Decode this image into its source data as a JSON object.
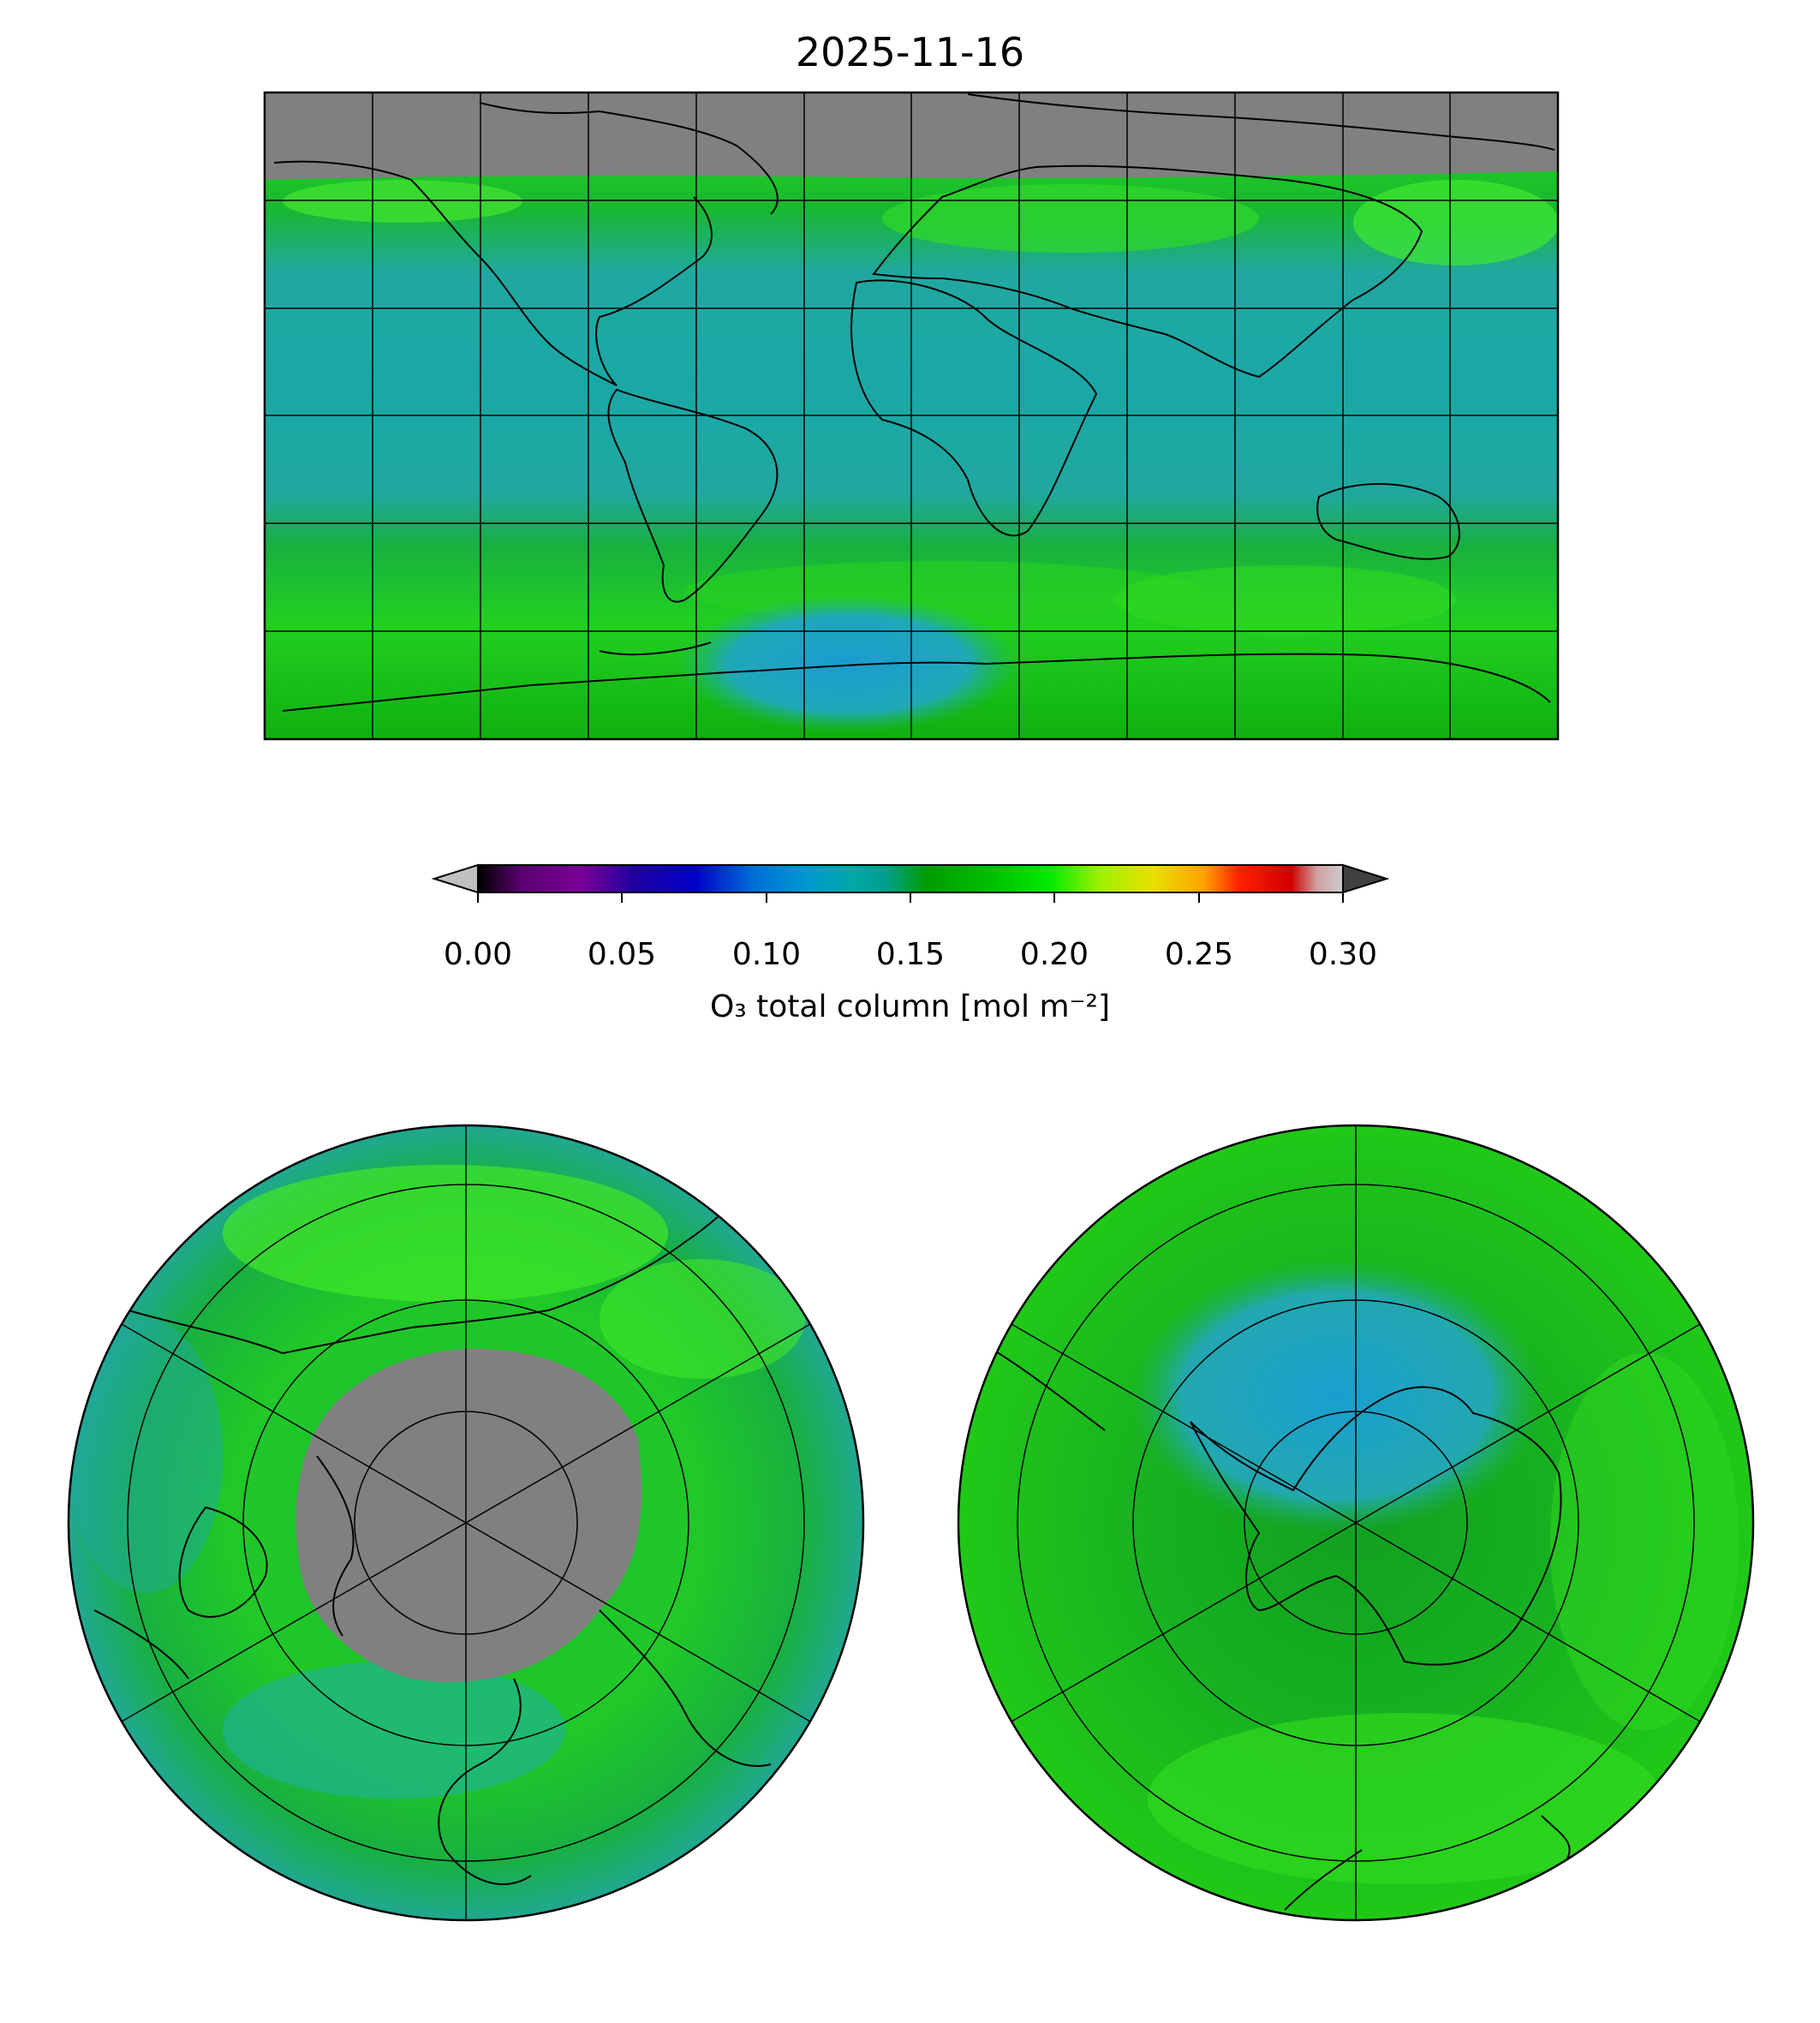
{
  "title": "2025-11-16",
  "colorbar": {
    "label": "O₃ total column [mol m⁻²]",
    "ticks": [
      "0.00",
      "0.05",
      "0.10",
      "0.15",
      "0.20",
      "0.25",
      "0.30"
    ],
    "range": [
      0.0,
      0.3
    ],
    "extend": "both",
    "under_color": "#c0c0c0",
    "over_color": "#404040",
    "colormap": "nipy_spectral"
  },
  "panels": [
    {
      "name": "global-map",
      "projection": "plate-carree",
      "no_data_color": "#808080"
    },
    {
      "name": "north-polar-map",
      "projection": "north-polar-stereographic",
      "no_data_color": "#808080"
    },
    {
      "name": "south-polar-map",
      "projection": "south-polar-stereographic",
      "no_data_color": "#808080"
    }
  ],
  "colors": {
    "background_field": "#10b010",
    "low_ozone": "#20a8a8",
    "ozone_hole": "#1c9cd0",
    "high_band": "#30e020",
    "gridline": "#000000"
  }
}
